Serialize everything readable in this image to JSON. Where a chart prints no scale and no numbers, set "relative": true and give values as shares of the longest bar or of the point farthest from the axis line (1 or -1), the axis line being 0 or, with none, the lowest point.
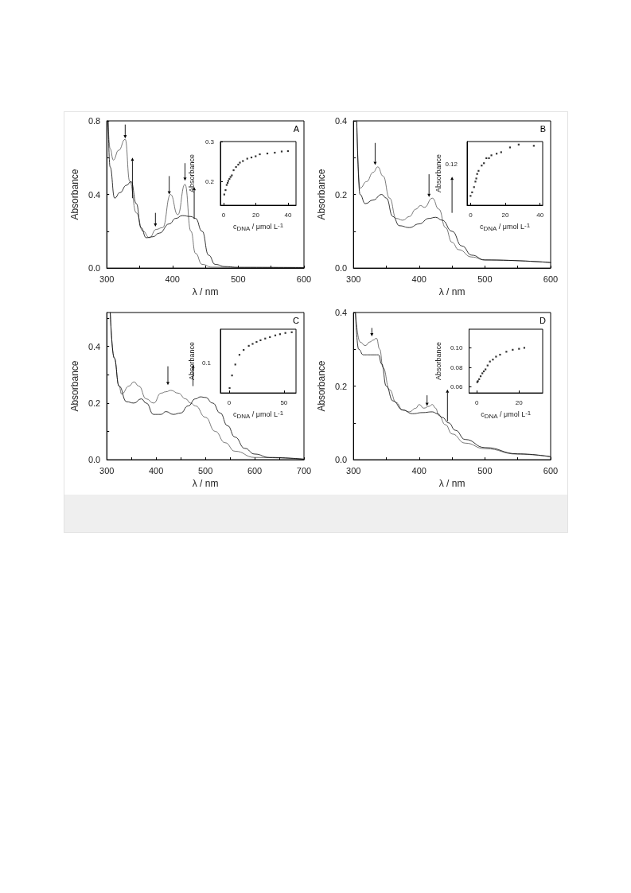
{
  "chart_data": [
    {
      "type": "line",
      "xlabel": "λ / nm",
      "ylabel": "Absorbance",
      "marker": "none",
      "annotations": [
        "A"
      ],
      "xlim": [
        300,
        600
      ],
      "xticks": [
        300,
        {
          "value": 350,
          "label": null
        },
        400,
        {
          "value": 450,
          "label": null
        },
        500,
        {
          "value": 550,
          "label": null
        },
        600
      ],
      "ylim": [
        0,
        0.8
      ],
      "yticks": [
        {
          "value": 0,
          "label": "0.0"
        },
        {
          "value": 0.2,
          "label": null
        },
        0.4,
        {
          "value": 0.6,
          "label": null
        },
        0.8
      ],
      "series": [
        {
          "color": "#555555",
          "x": [
            302,
            305,
            310,
            318,
            328,
            335,
            345,
            355,
            365,
            375,
            385,
            397,
            408,
            419,
            428,
            435,
            445,
            460,
            500,
            600
          ],
          "values": [
            0.8,
            0.65,
            0.587,
            0.64,
            0.7,
            0.47,
            0.3,
            0.2,
            0.165,
            0.21,
            0.22,
            0.4,
            0.29,
            0.455,
            0.2,
            0.08,
            0.02,
            0.005,
            0.003,
            0.002
          ]
        },
        {
          "color": "#000000",
          "x": [
            302,
            305,
            312,
            320,
            330,
            337,
            345,
            352,
            360,
            370,
            380,
            395,
            405,
            415,
            428,
            435,
            445,
            455,
            465,
            480,
            500,
            600
          ],
          "values": [
            0.8,
            0.55,
            0.38,
            0.41,
            0.45,
            0.47,
            0.35,
            0.22,
            0.165,
            0.17,
            0.19,
            0.24,
            0.27,
            0.285,
            0.28,
            0.27,
            0.2,
            0.07,
            0.02,
            0.008,
            0.004,
            0.003
          ]
        }
      ]
    },
    {
      "type": "scatter",
      "xlabel": "c$_{DNA}$ / μmol L$^{-1}$",
      "ylabel": "Absorbance",
      "marker": "square",
      "color": "#000000",
      "xlim": [
        -2,
        45
      ],
      "xticks": [
        0,
        20,
        40
      ],
      "ylim": [
        0.14,
        0.3
      ],
      "yticks": [
        0.2,
        0.3
      ],
      "x": [
        0.4,
        1.2,
        1.9,
        2.5,
        2.9,
        3.6,
        4.3,
        5.1,
        6.2,
        7.7,
        9.1,
        10.1,
        12,
        14.7,
        17.3,
        19.9,
        22.5,
        27.2,
        31.8,
        36.1,
        40
      ],
      "values": [
        0.167,
        0.178,
        0.191,
        0.196,
        0.201,
        0.206,
        0.211,
        0.215,
        0.228,
        0.236,
        0.242,
        0.247,
        0.251,
        0.257,
        0.26,
        0.263,
        0.268,
        0.27,
        0.272,
        0.275,
        0.276
      ]
    },
    {
      "type": "line",
      "xlabel": "λ / nm",
      "ylabel": "Absorbance",
      "marker": "none",
      "annotations": [
        "B"
      ],
      "xlim": [
        300,
        600
      ],
      "xticks": [
        300,
        {
          "value": 350,
          "label": null
        },
        400,
        {
          "value": 450,
          "label": null
        },
        500,
        {
          "value": 550,
          "label": null
        },
        600
      ],
      "ylim": [
        0,
        0.4
      ],
      "yticks": [
        {
          "value": 0,
          "label": "0.0"
        },
        {
          "value": 0.1,
          "label": null
        },
        0.2,
        {
          "value": 0.3,
          "label": null
        },
        0.4
      ],
      "series": [
        {
          "color": "#555555",
          "x": [
            305,
            310,
            320,
            330,
            337,
            345,
            355,
            365,
            375,
            385,
            395,
            402,
            408,
            420,
            430,
            440,
            450,
            460,
            480,
            500,
            600
          ],
          "values": [
            0.4,
            0.217,
            0.235,
            0.26,
            0.275,
            0.25,
            0.19,
            0.135,
            0.13,
            0.14,
            0.16,
            0.17,
            0.165,
            0.19,
            0.16,
            0.11,
            0.07,
            0.05,
            0.03,
            0.022,
            0.015
          ]
        },
        {
          "color": "#000000",
          "x": [
            305,
            310,
            318,
            330,
            343,
            350,
            360,
            370,
            385,
            400,
            415,
            425,
            435,
            450,
            465,
            480,
            500,
            600
          ],
          "values": [
            0.4,
            0.2,
            0.175,
            0.185,
            0.2,
            0.19,
            0.14,
            0.115,
            0.11,
            0.12,
            0.135,
            0.138,
            0.13,
            0.1,
            0.06,
            0.035,
            0.022,
            0.015
          ]
        }
      ]
    },
    {
      "type": "scatter",
      "relative": true,
      "xlabel": "c$_{DNA}$ / μmol L$^{-1}$",
      "ylabel": "Absorbance",
      "annotations": [
        "0.12"
      ],
      "marker": "square",
      "color": "#000000",
      "xlim": [
        -2,
        41.5
      ],
      "xticks": [
        0,
        20,
        40
      ],
      "x": [
        0,
        0.9,
        2,
        2.8,
        3.3,
        3.8,
        4.6,
        6.4,
        7.7,
        9.1,
        10.6,
        12,
        15,
        17.6,
        22.7,
        27.7,
        36.4
      ],
      "values": [
        0.154,
        0.213,
        0.299,
        0.39,
        0.441,
        0.516,
        0.567,
        0.654,
        0.693,
        0.776,
        0.776,
        0.823,
        0.85,
        0.874,
        0.953,
        1,
        0.98
      ]
    },
    {
      "type": "line",
      "xlabel": "λ / nm",
      "ylabel": "Absorbance",
      "marker": "none",
      "annotations": [
        "C"
      ],
      "xlim": [
        300,
        700
      ],
      "xticks": [
        300,
        {
          "value": 350,
          "label": null
        },
        400,
        {
          "value": 450,
          "label": null
        },
        500,
        {
          "value": 550,
          "label": null
        },
        600,
        {
          "value": 650,
          "label": null
        },
        700
      ],
      "ylim": [
        0,
        0.52
      ],
      "yticks": [
        {
          "value": 0,
          "label": "0.0"
        },
        {
          "value": 0.1,
          "label": null
        },
        0.2,
        {
          "value": 0.3,
          "label": null
        },
        0.4,
        {
          "value": 0.5,
          "label": null
        }
      ],
      "series": [
        {
          "color": "#555555",
          "x": [
            307,
            315,
            325,
            330,
            345,
            355,
            365,
            380,
            395,
            410,
            420,
            430,
            445,
            460,
            470,
            480,
            500,
            520,
            540,
            560,
            600,
            700
          ],
          "values": [
            0.52,
            0.36,
            0.26,
            0.232,
            0.26,
            0.275,
            0.26,
            0.215,
            0.2,
            0.235,
            0.24,
            0.245,
            0.235,
            0.215,
            0.2,
            0.19,
            0.15,
            0.1,
            0.06,
            0.03,
            0.008,
            0.002
          ]
        },
        {
          "color": "#000000",
          "x": [
            307,
            315,
            325,
            340,
            355,
            370,
            380,
            395,
            410,
            420,
            435,
            450,
            465,
            480,
            490,
            500,
            515,
            530,
            545,
            560,
            580,
            600,
            630,
            700
          ],
          "values": [
            0.52,
            0.36,
            0.26,
            0.205,
            0.2,
            0.215,
            0.2,
            0.16,
            0.16,
            0.17,
            0.16,
            0.165,
            0.19,
            0.215,
            0.222,
            0.22,
            0.2,
            0.165,
            0.12,
            0.08,
            0.04,
            0.02,
            0.008,
            0.002
          ]
        }
      ]
    },
    {
      "type": "scatter",
      "relative": true,
      "xlabel": "c$_{DNA}$ / μmol L$^{-1}$",
      "ylabel": "Absorbance",
      "annotations": [
        "0.1"
      ],
      "marker": "square",
      "color": "#000000",
      "xlim": [
        -8,
        61
      ],
      "xticks": [
        0,
        50
      ],
      "x": [
        0.4,
        2.6,
        5.6,
        9.4,
        13.2,
        17.9,
        21.4,
        25,
        28.6,
        32.9,
        37.2,
        42.1,
        46.4,
        51.3,
        57.1
      ],
      "values": [
        0.08,
        0.288,
        0.468,
        0.628,
        0.708,
        0.776,
        0.808,
        0.84,
        0.868,
        0.896,
        0.92,
        0.948,
        0.968,
        0.988,
        1
      ]
    },
    {
      "type": "line",
      "xlabel": "λ / nm",
      "ylabel": "Absorbance",
      "marker": "none",
      "annotations": [
        "D"
      ],
      "xlim": [
        300,
        600
      ],
      "xticks": [
        300,
        {
          "value": 350,
          "label": null
        },
        400,
        {
          "value": 450,
          "label": null
        },
        500,
        {
          "value": 550,
          "label": null
        },
        600
      ],
      "ylim": [
        0,
        0.4
      ],
      "yticks": [
        {
          "value": 0,
          "label": "0.0"
        },
        {
          "value": 0.1,
          "label": null
        },
        0.2,
        {
          "value": 0.3,
          "label": null
        },
        0.4
      ],
      "series": [
        {
          "color": "#555555",
          "x": [
            303,
            310,
            318,
            325,
            330,
            335,
            340,
            345,
            355,
            365,
            375,
            385,
            395,
            400,
            407,
            415,
            420,
            425,
            430,
            440,
            450,
            470,
            500,
            550,
            600
          ],
          "values": [
            0.4,
            0.32,
            0.31,
            0.32,
            0.325,
            0.33,
            0.3,
            0.25,
            0.19,
            0.155,
            0.135,
            0.13,
            0.14,
            0.15,
            0.14,
            0.145,
            0.15,
            0.14,
            0.12,
            0.095,
            0.07,
            0.045,
            0.03,
            0.015,
            0.008
          ]
        },
        {
          "color": "#000000",
          "x": [
            303,
            308,
            315,
            330,
            338,
            343,
            350,
            360,
            375,
            390,
            405,
            420,
            428,
            435,
            445,
            455,
            470,
            500,
            550,
            600
          ],
          "values": [
            0.4,
            0.3,
            0.285,
            0.285,
            0.285,
            0.26,
            0.2,
            0.16,
            0.135,
            0.125,
            0.128,
            0.13,
            0.125,
            0.115,
            0.1,
            0.08,
            0.055,
            0.033,
            0.016,
            0.008
          ]
        }
      ]
    },
    {
      "type": "scatter",
      "xlabel": "c$_{DNA}$ / μmol L$^{-1}$",
      "ylabel": "Absorbance",
      "marker": "square",
      "color": "#000000",
      "xlim": [
        -3.7,
        31.2
      ],
      "xticks": [
        0,
        20
      ],
      "ylim": [
        0.054,
        0.119
      ],
      "yticks": [
        {
          "value": 0.06,
          "label": "0.06"
        },
        {
          "value": 0.08,
          "label": "0.08"
        },
        {
          "value": 0.1,
          "label": "0.10"
        }
      ],
      "x": [
        0.2,
        0.5,
        1.1,
        1.8,
        2.6,
        3.3,
        4.1,
        5.1,
        6.2,
        7.6,
        9.1,
        11,
        14,
        17,
        20,
        22.5
      ],
      "values": [
        0.065,
        0.066,
        0.068,
        0.071,
        0.074,
        0.076,
        0.078,
        0.082,
        0.086,
        0.088,
        0.091,
        0.093,
        0.096,
        0.098,
        0.099,
        0.1
      ]
    }
  ]
}
